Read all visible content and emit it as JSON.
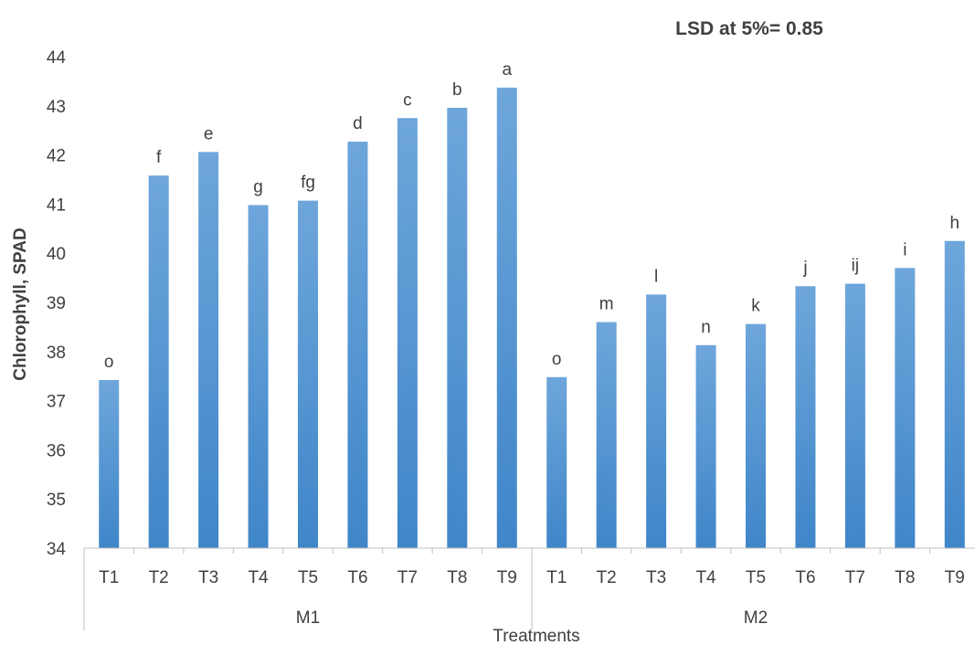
{
  "annotation": "LSD at 5%= 0.85",
  "chart_data": {
    "type": "bar",
    "xlabel": "Treatments",
    "ylabel": "Chlorophyll, SPAD",
    "ylim": [
      34,
      44
    ],
    "yticks": [
      34,
      35,
      36,
      37,
      38,
      39,
      40,
      41,
      42,
      43,
      44
    ],
    "grid": false,
    "groups": [
      {
        "name": "M1",
        "categories": [
          "T1",
          "T2",
          "T3",
          "T4",
          "T5",
          "T6",
          "T7",
          "T8",
          "T9"
        ],
        "values": [
          37.42,
          41.58,
          42.06,
          40.98,
          41.07,
          42.27,
          42.75,
          42.96,
          43.37
        ],
        "labels": [
          "o",
          "f",
          "e",
          "g",
          "fg",
          "d",
          "c",
          "b",
          "a"
        ]
      },
      {
        "name": "M2",
        "categories": [
          "T1",
          "T2",
          "T3",
          "T4",
          "T5",
          "T6",
          "T7",
          "T8",
          "T9"
        ],
        "values": [
          37.48,
          38.6,
          39.16,
          38.13,
          38.56,
          39.33,
          39.38,
          39.7,
          40.25
        ],
        "labels": [
          "o",
          "m",
          "l",
          "n",
          "k",
          "j",
          "ij",
          "i",
          "h"
        ]
      }
    ],
    "bar_color": "#5b9bd5"
  }
}
